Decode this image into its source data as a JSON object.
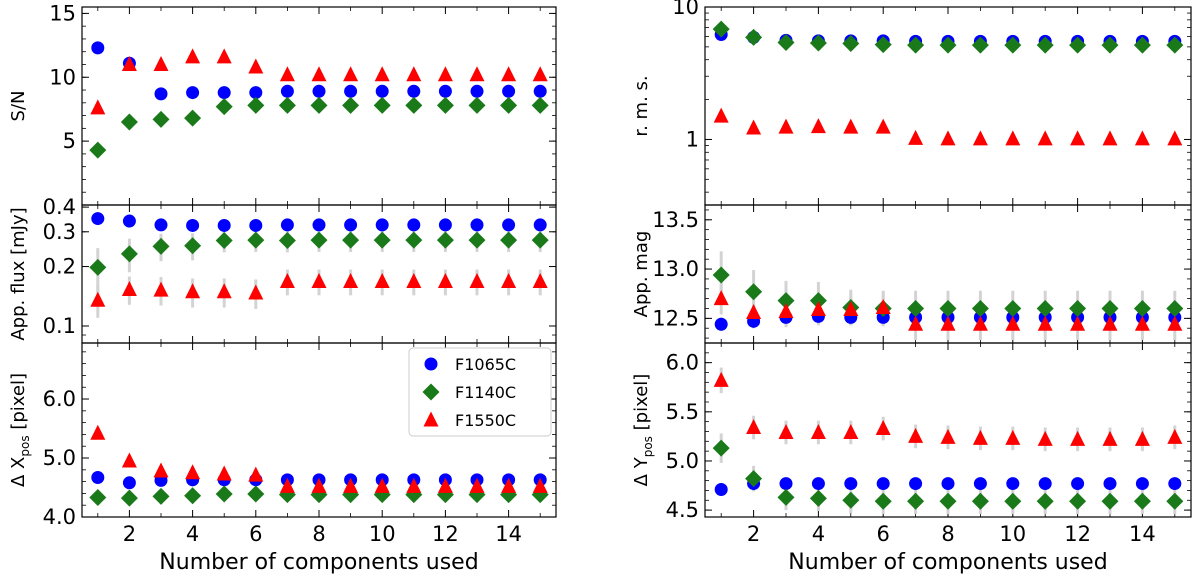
{
  "colors": {
    "F1065C": "#0000ff",
    "F1140C": "#1a7a1a",
    "F1550C": "#ff0000",
    "errorbar": "#d3d3d3"
  },
  "legend": {
    "placement": "top-right of bottom-left panel",
    "entries": [
      {
        "name": "F1065C",
        "marker": "circle",
        "color": "#0000ff"
      },
      {
        "name": "F1140C",
        "marker": "diamond",
        "color": "#1a7a1a"
      },
      {
        "name": "F1550C",
        "marker": "triangle",
        "color": "#ff0000"
      }
    ]
  },
  "chart_data": [
    {
      "id": "sn",
      "type": "scatter",
      "ylabel": "S/N",
      "xlim": [
        0.5,
        15.5
      ],
      "ylim": [
        0,
        15.5
      ],
      "yscale": "linear",
      "yticks": [
        5,
        10,
        15
      ],
      "ytick_labels": [
        "5",
        "10",
        "15"
      ],
      "xticks": [
        2,
        4,
        6,
        8,
        10,
        12,
        14
      ],
      "xtick_labels": [],
      "x": [
        1,
        2,
        3,
        4,
        5,
        6,
        7,
        8,
        9,
        10,
        11,
        12,
        13,
        14,
        15
      ],
      "series": [
        {
          "name": "F1065C",
          "values": [
            12.3,
            11.1,
            8.7,
            8.8,
            8.8,
            8.8,
            8.9,
            8.9,
            8.9,
            8.9,
            8.9,
            8.9,
            8.9,
            8.9,
            8.9
          ]
        },
        {
          "name": "F1140C",
          "values": [
            4.3,
            6.5,
            6.7,
            6.8,
            7.7,
            7.8,
            7.8,
            7.8,
            7.8,
            7.8,
            7.8,
            7.8,
            7.8,
            7.8,
            7.8
          ]
        },
        {
          "name": "F1550C",
          "values": [
            7.6,
            11.0,
            11.0,
            11.6,
            11.6,
            10.8,
            10.2,
            10.2,
            10.2,
            10.2,
            10.2,
            10.2,
            10.2,
            10.2,
            10.2
          ]
        }
      ]
    },
    {
      "id": "flux",
      "type": "scatter",
      "ylabel": "App.  flux [mJy]",
      "xlim": [
        0.5,
        15.5
      ],
      "ylim": [
        0.082,
        0.41
      ],
      "yscale": "log",
      "yticks": [
        0.1,
        0.2,
        0.3,
        0.4
      ],
      "ytick_labels": [
        "0.1",
        "0.2",
        "0.3",
        "0.4"
      ],
      "xticks": [
        2,
        4,
        6,
        8,
        10,
        12,
        14
      ],
      "xtick_labels": [],
      "x": [
        1,
        2,
        3,
        4,
        5,
        6,
        7,
        8,
        9,
        10,
        11,
        12,
        13,
        14,
        15
      ],
      "series": [
        {
          "name": "F1065C",
          "values": [
            0.35,
            0.34,
            0.325,
            0.323,
            0.323,
            0.323,
            0.325,
            0.325,
            0.325,
            0.325,
            0.325,
            0.325,
            0.325,
            0.325,
            0.325
          ],
          "errors": [
            0.02,
            0.02,
            0.02,
            0.02,
            0.02,
            0.02,
            0.02,
            0.02,
            0.02,
            0.02,
            0.02,
            0.02,
            0.02,
            0.02,
            0.02
          ]
        },
        {
          "name": "F1140C",
          "values": [
            0.198,
            0.232,
            0.253,
            0.255,
            0.271,
            0.272,
            0.271,
            0.272,
            0.272,
            0.272,
            0.272,
            0.272,
            0.272,
            0.272,
            0.272
          ],
          "errors": [
            0.05,
            0.045,
            0.04,
            0.04,
            0.035,
            0.035,
            0.035,
            0.035,
            0.035,
            0.035,
            0.035,
            0.035,
            0.035,
            0.035,
            0.035
          ]
        },
        {
          "name": "F1550C",
          "values": [
            0.135,
            0.153,
            0.152,
            0.149,
            0.149,
            0.147,
            0.168,
            0.168,
            0.168,
            0.168,
            0.168,
            0.168,
            0.168,
            0.168,
            0.168
          ],
          "errors": [
            0.025,
            0.025,
            0.025,
            0.025,
            0.025,
            0.025,
            0.025,
            0.025,
            0.025,
            0.025,
            0.025,
            0.025,
            0.025,
            0.025,
            0.025
          ]
        }
      ]
    },
    {
      "id": "dx",
      "type": "scatter",
      "ylabel": "Δ X",
      "ylabel_sub": "pos",
      "ylabel_suffix": " [pixel]",
      "xlim": [
        0.5,
        15.5
      ],
      "ylim": [
        4.0,
        6.95
      ],
      "yscale": "linear",
      "yticks": [
        4.0,
        5.0,
        6.0
      ],
      "ytick_labels": [
        "4.0",
        "5.0",
        "6.0"
      ],
      "xticks": [
        2,
        4,
        6,
        8,
        10,
        12,
        14
      ],
      "xtick_labels": [
        "2",
        "4",
        "6",
        "8",
        "10",
        "12",
        "14"
      ],
      "xlabel": "Number of components used",
      "x": [
        1,
        2,
        3,
        4,
        5,
        6,
        7,
        8,
        9,
        10,
        11,
        12,
        13,
        14,
        15
      ],
      "series": [
        {
          "name": "F1065C",
          "values": [
            4.67,
            4.58,
            4.62,
            4.63,
            4.63,
            4.63,
            4.63,
            4.63,
            4.63,
            4.63,
            4.63,
            4.63,
            4.63,
            4.63,
            4.63
          ],
          "errors": [
            0.05,
            0.05,
            0.05,
            0.05,
            0.05,
            0.05,
            0.05,
            0.05,
            0.05,
            0.05,
            0.05,
            0.05,
            0.05,
            0.05,
            0.05
          ]
        },
        {
          "name": "F1140C",
          "values": [
            4.33,
            4.32,
            4.35,
            4.36,
            4.39,
            4.39,
            4.38,
            4.38,
            4.38,
            4.38,
            4.38,
            4.38,
            4.38,
            4.38,
            4.38
          ],
          "errors": [
            0.08,
            0.08,
            0.08,
            0.08,
            0.08,
            0.08,
            0.08,
            0.08,
            0.08,
            0.08,
            0.08,
            0.08,
            0.08,
            0.08,
            0.08
          ]
        },
        {
          "name": "F1550C",
          "values": [
            5.42,
            4.95,
            4.78,
            4.75,
            4.73,
            4.71,
            4.52,
            4.52,
            4.52,
            4.52,
            4.52,
            4.52,
            4.52,
            4.52,
            4.52
          ],
          "errors": [
            0.1,
            0.1,
            0.1,
            0.1,
            0.1,
            0.1,
            0.1,
            0.1,
            0.1,
            0.1,
            0.1,
            0.1,
            0.1,
            0.1,
            0.1
          ]
        }
      ]
    },
    {
      "id": "rms",
      "type": "scatter",
      "ylabel": "r. m. s.",
      "xlim": [
        0.5,
        15.5
      ],
      "ylim": [
        0.32,
        10
      ],
      "yscale": "log",
      "yticks": [
        1,
        10
      ],
      "ytick_labels": [
        "1",
        "10"
      ],
      "xticks": [
        2,
        4,
        6,
        8,
        10,
        12,
        14
      ],
      "xtick_labels": [],
      "x": [
        1,
        2,
        3,
        4,
        5,
        6,
        7,
        8,
        9,
        10,
        11,
        12,
        13,
        14,
        15
      ],
      "series": [
        {
          "name": "F1065C",
          "values": [
            6.2,
            5.9,
            5.6,
            5.55,
            5.55,
            5.55,
            5.5,
            5.5,
            5.5,
            5.5,
            5.5,
            5.5,
            5.5,
            5.5,
            5.5
          ]
        },
        {
          "name": "F1140C",
          "values": [
            6.8,
            5.9,
            5.4,
            5.35,
            5.3,
            5.2,
            5.15,
            5.15,
            5.15,
            5.15,
            5.15,
            5.15,
            5.15,
            5.15,
            5.15
          ]
        },
        {
          "name": "F1550C",
          "values": [
            1.5,
            1.22,
            1.24,
            1.25,
            1.24,
            1.24,
            1.02,
            1.01,
            1.01,
            1.01,
            1.01,
            1.01,
            1.01,
            1.01,
            1.01
          ]
        }
      ]
    },
    {
      "id": "mag",
      "type": "scatter",
      "ylabel": "App.  mag",
      "xlim": [
        0.5,
        15.5
      ],
      "ylim": [
        12.25,
        13.65
      ],
      "yscale": "linear",
      "yticks": [
        12.5,
        13.0,
        13.5
      ],
      "ytick_labels": [
        "12.5",
        "13.0",
        "13.5"
      ],
      "xticks": [
        2,
        4,
        6,
        8,
        10,
        12,
        14
      ],
      "xtick_labels": [],
      "x": [
        1,
        2,
        3,
        4,
        5,
        6,
        7,
        8,
        9,
        10,
        11,
        12,
        13,
        14,
        15
      ],
      "series": [
        {
          "name": "F1065C",
          "values": [
            12.44,
            12.47,
            12.51,
            12.52,
            12.51,
            12.51,
            12.51,
            12.51,
            12.51,
            12.51,
            12.51,
            12.51,
            12.51,
            12.51,
            12.51
          ],
          "errors": [
            0.07,
            0.07,
            0.07,
            0.07,
            0.07,
            0.07,
            0.07,
            0.07,
            0.07,
            0.07,
            0.07,
            0.07,
            0.07,
            0.07,
            0.07
          ]
        },
        {
          "name": "F1140C",
          "values": [
            12.94,
            12.77,
            12.68,
            12.68,
            12.61,
            12.6,
            12.6,
            12.6,
            12.6,
            12.6,
            12.6,
            12.6,
            12.6,
            12.6,
            12.6
          ],
          "errors": [
            0.24,
            0.22,
            0.2,
            0.19,
            0.18,
            0.18,
            0.18,
            0.18,
            0.18,
            0.18,
            0.18,
            0.18,
            0.18,
            0.18,
            0.18
          ]
        },
        {
          "name": "F1550C",
          "values": [
            12.7,
            12.56,
            12.57,
            12.59,
            12.59,
            12.61,
            12.44,
            12.44,
            12.44,
            12.44,
            12.44,
            12.44,
            12.44,
            12.44,
            12.44
          ],
          "errors": [
            0.16,
            0.16,
            0.16,
            0.16,
            0.16,
            0.16,
            0.16,
            0.16,
            0.16,
            0.16,
            0.16,
            0.16,
            0.16,
            0.16,
            0.16
          ]
        }
      ]
    },
    {
      "id": "dy",
      "type": "scatter",
      "ylabel": "Δ Y",
      "ylabel_sub": "pos",
      "ylabel_suffix": " [pixel]",
      "xlim": [
        0.5,
        15.5
      ],
      "ylim": [
        4.43,
        6.2
      ],
      "yscale": "linear",
      "yticks": [
        4.5,
        5.0,
        5.5,
        6.0
      ],
      "ytick_labels": [
        "4.5",
        "5.0",
        "5.5",
        "6.0"
      ],
      "xticks": [
        2,
        4,
        6,
        8,
        10,
        12,
        14
      ],
      "xtick_labels": [
        "2",
        "4",
        "6",
        "8",
        "10",
        "12",
        "14"
      ],
      "xlabel": "Number of components used",
      "x": [
        1,
        2,
        3,
        4,
        5,
        6,
        7,
        8,
        9,
        10,
        11,
        12,
        13,
        14,
        15
      ],
      "series": [
        {
          "name": "F1065C",
          "values": [
            4.71,
            4.77,
            4.77,
            4.77,
            4.77,
            4.77,
            4.77,
            4.77,
            4.77,
            4.77,
            4.77,
            4.77,
            4.77,
            4.77,
            4.77
          ],
          "errors": [
            0.06,
            0.06,
            0.06,
            0.06,
            0.06,
            0.06,
            0.06,
            0.06,
            0.06,
            0.06,
            0.06,
            0.06,
            0.06,
            0.06,
            0.06
          ]
        },
        {
          "name": "F1140C",
          "values": [
            5.13,
            4.82,
            4.63,
            4.62,
            4.6,
            4.59,
            4.59,
            4.59,
            4.59,
            4.59,
            4.59,
            4.59,
            4.59,
            4.59,
            4.59
          ],
          "errors": [
            0.15,
            0.13,
            0.13,
            0.13,
            0.13,
            0.13,
            0.13,
            0.13,
            0.13,
            0.13,
            0.13,
            0.13,
            0.13,
            0.13,
            0.13
          ]
        },
        {
          "name": "F1550C",
          "values": [
            5.82,
            5.34,
            5.29,
            5.29,
            5.29,
            5.33,
            5.25,
            5.24,
            5.23,
            5.23,
            5.22,
            5.22,
            5.22,
            5.22,
            5.24
          ],
          "errors": [
            0.13,
            0.12,
            0.12,
            0.12,
            0.12,
            0.12,
            0.12,
            0.12,
            0.12,
            0.12,
            0.12,
            0.12,
            0.12,
            0.12,
            0.12
          ]
        }
      ]
    }
  ]
}
